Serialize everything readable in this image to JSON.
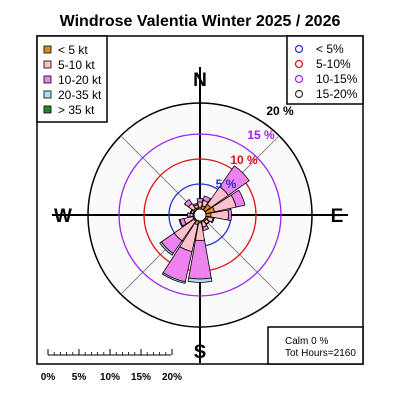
{
  "title": "Windrose  Valentia Winter 2025 / 2026",
  "chart_data": {
    "type": "windrose",
    "directions": [
      "N",
      "NNE",
      "NE",
      "ENE",
      "E",
      "ESE",
      "SE",
      "SSE",
      "S",
      "SSW",
      "SW",
      "WSW",
      "W",
      "WNW",
      "NW",
      "NNW"
    ],
    "speed_bins": [
      {
        "label": "< 5  kt",
        "color": "#e08a1e"
      },
      {
        "label": "5-10 kt",
        "color": "#ffc0cb"
      },
      {
        "label": "10-20 kt",
        "color": "#ee82ee"
      },
      {
        "label": "20-35 kt",
        "color": "#b0e0e6"
      },
      {
        "label": "> 35 kt",
        "color": "#228b22"
      }
    ],
    "frequencies_pct": [
      [
        0.4,
        1.0,
        0.7,
        0.0,
        0.0
      ],
      [
        0.7,
        1.1,
        0.9,
        0.0,
        0.0
      ],
      [
        1.4,
        4.3,
        5.1,
        0.0,
        0.0
      ],
      [
        1.8,
        4.4,
        1.8,
        0.0,
        0.0
      ],
      [
        1.0,
        3.5,
        0.6,
        0.0,
        0.0
      ],
      [
        0.5,
        1.0,
        0.2,
        0.0,
        0.0
      ],
      [
        0.3,
        0.7,
        0.1,
        0.0,
        0.0
      ],
      [
        0.3,
        1.0,
        0.7,
        0.0,
        0.0
      ],
      [
        0.4,
        3.5,
        7.7,
        0.7,
        0.0
      ],
      [
        0.8,
        5.5,
        6.2,
        0.3,
        0.0
      ],
      [
        0.3,
        4.8,
        3.1,
        0.4,
        0.0
      ],
      [
        0.3,
        1.8,
        0.8,
        0.2,
        0.0
      ],
      [
        0.2,
        0.6,
        0.5,
        0.0,
        0.0
      ],
      [
        0.2,
        0.4,
        0.2,
        0.0,
        0.0
      ],
      [
        0.4,
        1.2,
        1.0,
        0.0,
        0.0
      ],
      [
        0.3,
        0.6,
        0.3,
        0.0,
        0.0
      ]
    ],
    "rings": [
      {
        "label": "5 %",
        "value": 5,
        "color": "#2233cc"
      },
      {
        "label": "10 %",
        "value": 10,
        "color": "#dd1111"
      },
      {
        "label": "15 %",
        "value": 15,
        "color": "#a020f0"
      },
      {
        "label": "20 %",
        "value": 20,
        "color": "#000000"
      }
    ],
    "ring_legend": [
      {
        "label": "< 5%",
        "color": "#2233cc"
      },
      {
        "label": "5-10%",
        "color": "#dd1111"
      },
      {
        "label": "10-15%",
        "color": "#a020f0"
      },
      {
        "label": "15-20%",
        "color": "#333333"
      }
    ],
    "compass": {
      "n": "N",
      "e": "E",
      "s": "S",
      "w": "W"
    },
    "calm": "Calm 0 %",
    "total_hours": "Tot Hours=2160",
    "scale_ticks": [
      "0%",
      "5%",
      "10%",
      "15%",
      "20%"
    ]
  }
}
